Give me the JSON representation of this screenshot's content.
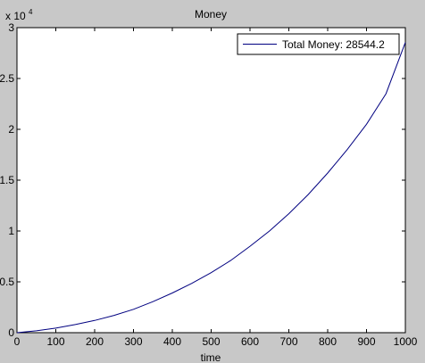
{
  "chart_data": {
    "type": "line",
    "title": "Money",
    "xlabel": "time",
    "ylabel": "",
    "y_scale_label": {
      "base": "x 10",
      "exponent": "4"
    },
    "xlim": [
      0,
      1000
    ],
    "ylim": [
      0,
      30000
    ],
    "x_ticks": [
      0,
      100,
      200,
      300,
      400,
      500,
      600,
      700,
      800,
      900,
      1000
    ],
    "x_tick_labels": [
      "0",
      "100",
      "200",
      "300",
      "400",
      "500",
      "600",
      "700",
      "800",
      "900",
      "1000"
    ],
    "y_ticks": [
      0,
      5000,
      10000,
      15000,
      20000,
      25000,
      30000
    ],
    "y_tick_labels": [
      "0",
      "0.5",
      "1",
      "1.5",
      "2",
      "2.5",
      "3"
    ],
    "grid": false,
    "legend_position": "top-right",
    "series": [
      {
        "name": "Total Money: 28544.2",
        "color": "#000080",
        "x": [
          0,
          50,
          100,
          150,
          200,
          250,
          300,
          350,
          400,
          450,
          500,
          550,
          600,
          650,
          700,
          750,
          800,
          850,
          900,
          950,
          1000
        ],
        "y": [
          0,
          180,
          450,
          800,
          1200,
          1700,
          2300,
          3050,
          3900,
          4850,
          5900,
          7100,
          8500,
          10000,
          11700,
          13600,
          15700,
          18000,
          20500,
          23500,
          28544.2
        ]
      }
    ]
  }
}
